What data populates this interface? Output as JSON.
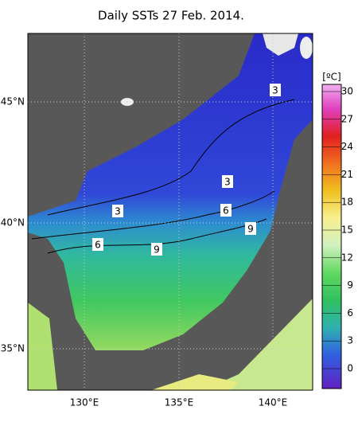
{
  "title": "Daily SSTs 27 Feb. 2014.",
  "map": {
    "lat_labels": [
      "45°N",
      "40°N",
      "35°N"
    ],
    "lon_labels": [
      "130°E",
      "135°E",
      "140°E"
    ],
    "contour_labels": [
      "3",
      "3",
      "3",
      "6",
      "6",
      "9",
      "9"
    ]
  },
  "colorbar": {
    "unit": "[ºC]",
    "ticks": [
      30,
      27,
      24,
      21,
      18,
      15,
      12,
      9,
      6,
      3,
      0
    ]
  }
}
